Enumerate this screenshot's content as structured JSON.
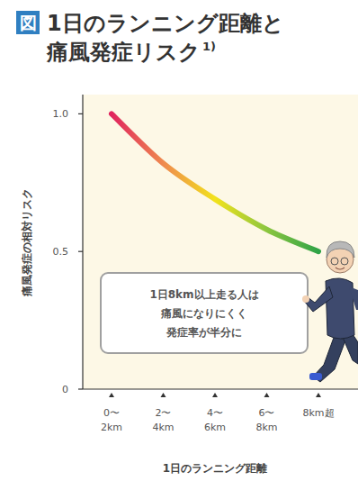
{
  "chart_data": {
    "type": "line",
    "figure_label": "図",
    "title": [
      "1日のランニング距離と",
      "痛風発症リスク"
    ],
    "title_note": "1)",
    "y_label": "痛風発症の相対リスク",
    "x_label": "1日のランニング距離",
    "annotation": [
      "1日8km以上走る人は",
      "痛風になりにくく",
      "発症率が半分に"
    ],
    "categories": [
      "0〜2km",
      "2〜4km",
      "4〜6km",
      "6〜8km",
      "8km超"
    ],
    "series": [
      {
        "name": "痛風発症リスク",
        "values": [
          1.0,
          0.82,
          0.69,
          0.58,
          0.5
        ],
        "colors": [
          "#e0245e",
          "#ef8a4f",
          "#f2e21c",
          "#8cc63f",
          "#2fa347"
        ]
      }
    ],
    "ylim": [
      0,
      1.07
    ],
    "yticks": [
      0,
      0.5,
      {
        "value": 1,
        "label": "1.0"
      }
    ],
    "grid": false,
    "marker": "none",
    "line_style": "solid"
  }
}
